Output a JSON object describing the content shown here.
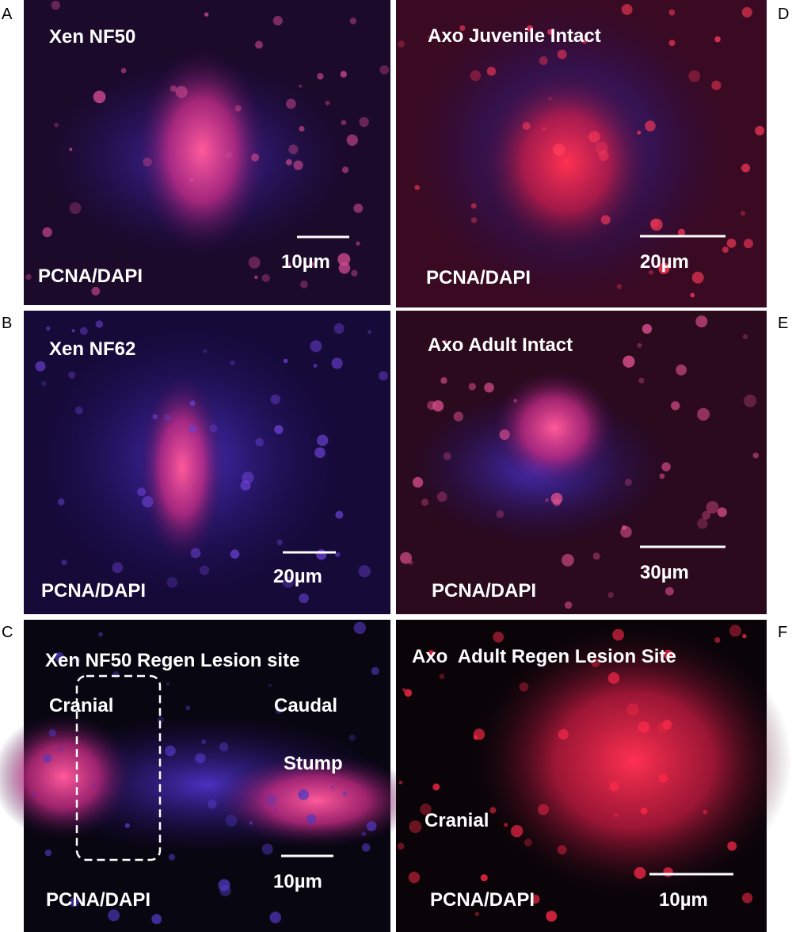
{
  "panels": [
    {
      "letter": "A",
      "title": "Xen NF50",
      "stain": "PCNA/DAPI",
      "scale_bar": "10µm"
    },
    {
      "letter": "B",
      "title": "Xen NF62",
      "stain": "PCNA/DAPI",
      "scale_bar": "20µm"
    },
    {
      "letter": "C",
      "title": "Xen NF50 Regen Lesion site",
      "stain": "PCNA/DAPI",
      "scale_bar": "10µm",
      "labels": [
        "Cranial",
        "Caudal",
        "Stump"
      ]
    },
    {
      "letter": "D",
      "title": "Axo Juvenile Intact",
      "stain": "PCNA/DAPI",
      "scale_bar": "20µm"
    },
    {
      "letter": "E",
      "title": "Axo Adult Intact",
      "stain": "PCNA/DAPI",
      "scale_bar": "30µm"
    },
    {
      "letter": "F",
      "title": "Axo  Adult Regen Lesion Site",
      "stain": "PCNA/DAPI",
      "scale_bar": "10µm",
      "labels": [
        "Cranial"
      ]
    }
  ]
}
